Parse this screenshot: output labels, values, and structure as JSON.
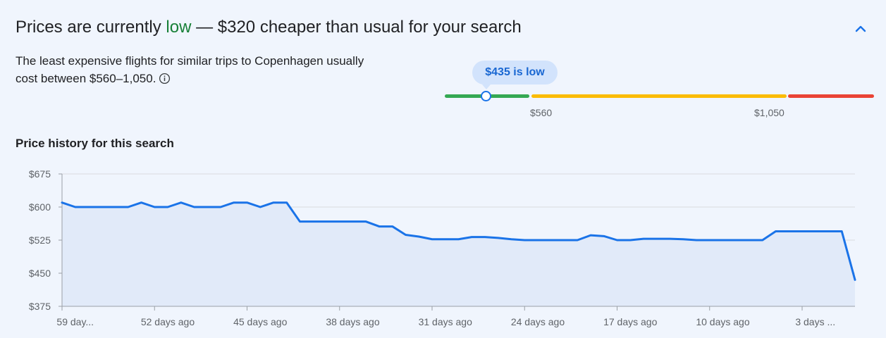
{
  "header": {
    "title_prefix": "Prices are currently ",
    "title_status": "low",
    "title_suffix": " — $320 cheaper than usual for your search",
    "collapse_icon": "chevron-up-icon"
  },
  "summary": {
    "description": "The least expensive flights for similar trips to Copenhagen usually cost between $560–1,050.",
    "info_icon": "info-icon"
  },
  "price_range": {
    "current_label": "$435 is low",
    "current_price": 435,
    "low_label": "$560",
    "high_label": "$1,050",
    "colors": {
      "low": "#34a853",
      "typical": "#fbbc04",
      "high": "#ea4335",
      "marker": "#1a73e8"
    }
  },
  "history_title": "Price history for this search",
  "chart_data": {
    "type": "area",
    "title": "",
    "xlabel": "",
    "ylabel": "",
    "ylim": [
      375,
      675
    ],
    "y_ticks": [
      375,
      450,
      525,
      600,
      675
    ],
    "y_tick_labels": [
      "$375",
      "$450",
      "$525",
      "$600",
      "$675"
    ],
    "x_label_ticks": [
      {
        "days_ago": 59,
        "label": "59 day..."
      },
      {
        "days_ago": 52,
        "label": "52 days ago"
      },
      {
        "days_ago": 45,
        "label": "45 days ago"
      },
      {
        "days_ago": 38,
        "label": "38 days ago"
      },
      {
        "days_ago": 31,
        "label": "31 days ago"
      },
      {
        "days_ago": 24,
        "label": "24 days ago"
      },
      {
        "days_ago": 17,
        "label": "17 days ago"
      },
      {
        "days_ago": 10,
        "label": "10 days ago"
      },
      {
        "days_ago": 3,
        "label": "3 days ..."
      }
    ],
    "x_minor_ticks": [
      60,
      53,
      46,
      39,
      32,
      25,
      18,
      11,
      4
    ],
    "grid": true,
    "line_color": "#1a73e8",
    "fill_color": "#e1eaf9",
    "series": [
      {
        "x": [
          60,
          59,
          58,
          57,
          56,
          55,
          54,
          53,
          52,
          51,
          50,
          49,
          48,
          47,
          46,
          45,
          44,
          43,
          42,
          41,
          40,
          39,
          38,
          37,
          36,
          35,
          34,
          33,
          32,
          31,
          30,
          29,
          28,
          27,
          26,
          25,
          24,
          23,
          22,
          21,
          20,
          19,
          18,
          17,
          16,
          15,
          14,
          13,
          12,
          11,
          10,
          9,
          8,
          7,
          6,
          5,
          4,
          3,
          2,
          1,
          0
        ],
        "values": [
          610,
          600,
          600,
          600,
          600,
          600,
          610,
          600,
          600,
          610,
          600,
          600,
          600,
          610,
          610,
          600,
          610,
          610,
          567,
          567,
          567,
          567,
          567,
          567,
          556,
          556,
          537,
          533,
          527,
          527,
          527,
          532,
          532,
          530,
          527,
          525,
          525,
          525,
          525,
          525,
          536,
          534,
          525,
          525,
          528,
          528,
          528,
          527,
          525,
          525,
          525,
          525,
          525,
          525,
          545,
          545,
          545,
          545,
          545,
          545,
          435
        ]
      }
    ]
  }
}
